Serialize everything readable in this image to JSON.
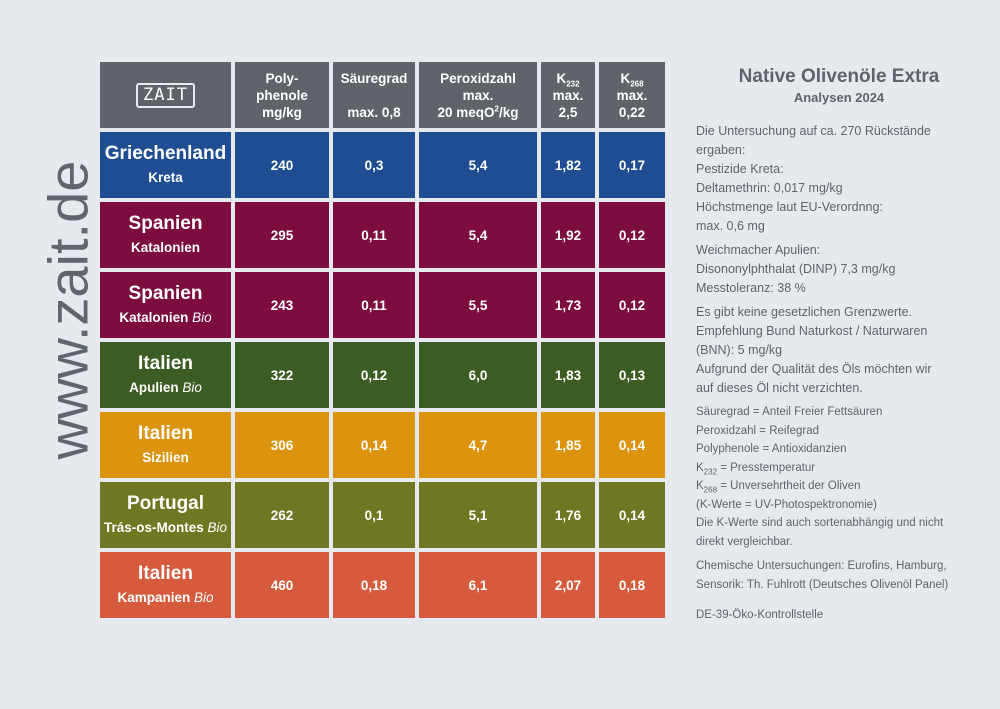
{
  "watermark": "www.zait.de",
  "logo_text": "ZAIT",
  "header": {
    "col1": [
      "Poly-",
      "phenole",
      "mg/kg"
    ],
    "col2": [
      "Säuregrad",
      "max. 0,8"
    ],
    "col3": [
      "Peroxidzahl",
      "max.",
      "20 meqO",
      "2",
      "/kg"
    ],
    "col4": [
      "K",
      "232",
      "max.",
      "2,5"
    ],
    "col5": [
      "K",
      "268",
      "max.",
      "0,22"
    ]
  },
  "rows": [
    {
      "country": "Griechenland",
      "region": "Kreta",
      "bio": "",
      "color": "#1f4d92",
      "values": [
        "240",
        "0,3",
        "5,4",
        "1,82",
        "0,17"
      ]
    },
    {
      "country": "Spanien",
      "region": "Katalonien",
      "bio": "",
      "color": "#7d0c3f",
      "values": [
        "295",
        "0,11",
        "5,4",
        "1,92",
        "0,12"
      ]
    },
    {
      "country": "Spanien",
      "region": "Katalonien",
      "bio": "Bio",
      "color": "#7d0c3f",
      "values": [
        "243",
        "0,11",
        "5,5",
        "1,73",
        "0,12"
      ]
    },
    {
      "country": "Italien",
      "region": "Apulien",
      "bio": "Bio",
      "color": "#3b5c22",
      "values": [
        "322",
        "0,12",
        "6,0",
        "1,83",
        "0,13"
      ]
    },
    {
      "country": "Italien",
      "region": "Sizilien",
      "bio": "",
      "color": "#dc930e",
      "values": [
        "306",
        "0,14",
        "4,7",
        "1,85",
        "0,14"
      ]
    },
    {
      "country": "Portugal",
      "region": "Trás-os-Montes",
      "bio": "Bio",
      "color": "#707723",
      "values": [
        "262",
        "0,1",
        "5,1",
        "1,76",
        "0,14"
      ]
    },
    {
      "country": "Italien",
      "region": "Kampanien",
      "bio": "Bio",
      "color": "#d65b3d",
      "values": [
        "460",
        "0,18",
        "6,1",
        "2,07",
        "0,18"
      ]
    }
  ],
  "side": {
    "title": "Native Olivenöle Extra",
    "subtitle": "Analysen 2024",
    "p1": [
      "Die Untersuchung auf ca. 270 Rückstände",
      "ergaben:",
      "Pestizide Kreta:",
      "Deltamethrin: 0,017 mg/kg",
      "Höchstmenge laut EU-Verordnng:",
      "max. 0,6 mg"
    ],
    "p2": [
      "Weichmacher Apulien:",
      "Disononylphthalat (DINP) 7,3 mg/kg",
      "Messtoleranz: 38 %"
    ],
    "p3": [
      "Es gibt keine gesetzlichen Grenzwerte.",
      "Empfehlung Bund Naturkost / Naturwaren",
      "(BNN): 5 mg/kg",
      "Aufgrund der Qualität des Öls möchten wir",
      "auf dieses Öl nicht verzichten."
    ],
    "legend": {
      "l1": "Säuregrad = Anteil Freier Fettsäuren",
      "l2": "Peroxidzahl = Reifegrad",
      "l3": "Polyphenole = Antioxidanzien",
      "k232_k": "K",
      "k232_sub": "232",
      "k232_text": " =  Presstemperatur",
      "k268_k": "K",
      "k268_sub": "268",
      "k268_text": " = Unversehrtheit der Oliven",
      "l6": "(K-Werte = UV-Photospektronomie)",
      "l7": "Die K-Werte sind auch sortenabhängig und nicht",
      "l8": "direkt vergleichbar."
    },
    "p5": [
      "Chemische Untersuchungen: Eurofins, Hamburg,",
      "Sensorik: Th. Fuhlrott (Deutsches Olivenöl Panel)"
    ],
    "p6": "DE-39-Öko-Kontrollstelle"
  }
}
